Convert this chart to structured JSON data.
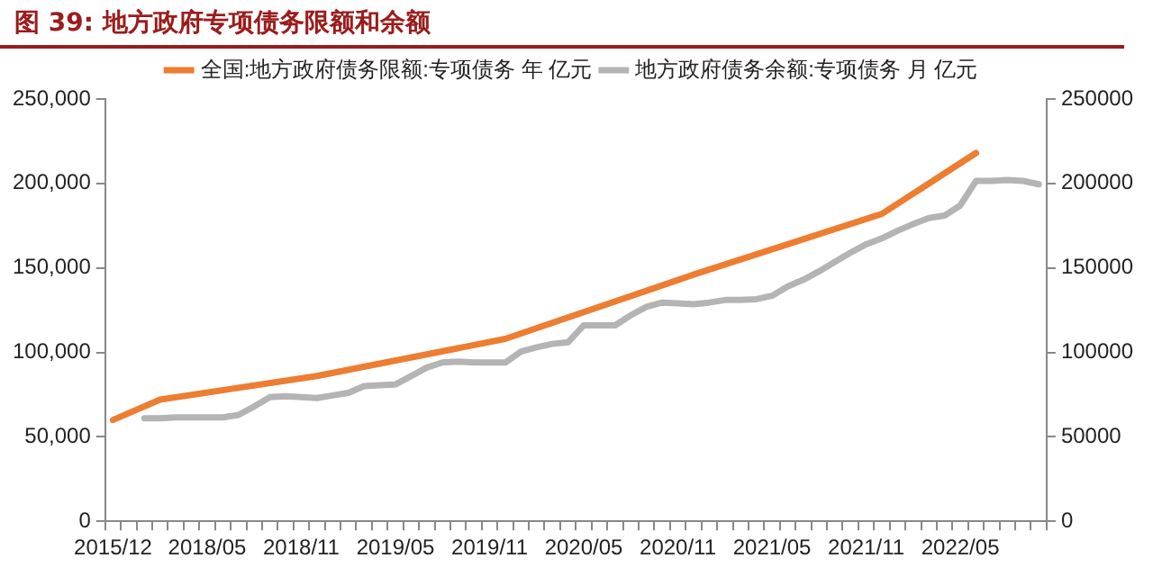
{
  "chart_data": {
    "type": "line",
    "title": "图 39: 地方政府专项债务限额和余额",
    "categories": [
      "2015/12",
      null,
      null,
      null,
      null,
      null,
      "2018/05",
      null,
      null,
      null,
      null,
      null,
      "2018/11",
      null,
      null,
      null,
      null,
      null,
      "2019/05",
      null,
      null,
      null,
      null,
      null,
      "2019/11",
      null,
      null,
      null,
      null,
      null,
      "2020/05",
      null,
      null,
      null,
      null,
      null,
      "2020/11",
      null,
      null,
      null,
      null,
      null,
      "2021/05",
      null,
      null,
      null,
      null,
      null,
      "2021/11",
      null,
      null,
      null,
      null,
      null,
      "2022/05",
      null,
      null,
      null,
      null,
      null
    ],
    "series": [
      {
        "name": "全国:地方政府债务限额:专项债务 年 亿元",
        "color": "#ed7d31",
        "values": [
          60000,
          null,
          null,
          72000,
          null,
          null,
          null,
          null,
          null,
          null,
          null,
          null,
          null,
          86000,
          null,
          null,
          null,
          null,
          null,
          null,
          null,
          null,
          null,
          null,
          null,
          108000,
          null,
          null,
          null,
          null,
          null,
          null,
          null,
          null,
          null,
          null,
          null,
          146000,
          null,
          null,
          null,
          null,
          null,
          null,
          null,
          null,
          null,
          null,
          null,
          182000,
          null,
          null,
          null,
          null,
          null,
          218000,
          null,
          null,
          null,
          null
        ]
      },
      {
        "name": "地方政府债务余额:专项债务 月 亿元",
        "color": "#b4b4b4",
        "values": [
          null,
          null,
          61000,
          61000,
          61500,
          61500,
          61500,
          61500,
          63000,
          68000,
          73500,
          74000,
          73500,
          73000,
          74500,
          76000,
          80000,
          80500,
          81000,
          86000,
          91000,
          94000,
          94500,
          94000,
          94000,
          94000,
          100500,
          103000,
          105000,
          106000,
          116000,
          116000,
          116000,
          122000,
          127000,
          129500,
          129000,
          128500,
          129500,
          131000,
          131000,
          131500,
          133500,
          139000,
          143000,
          148000,
          153500,
          159000,
          164000,
          167500,
          172000,
          176000,
          179500,
          181000,
          187000,
          201500,
          201500,
          202000,
          201500,
          199500
        ]
      }
    ],
    "ylim": [
      0,
      250000
    ],
    "yticks": [
      {
        "value": 0,
        "label": "0"
      },
      {
        "value": 50000,
        "label": "50,000"
      },
      {
        "value": 100000,
        "label": "100,000"
      },
      {
        "value": 150000,
        "label": "150,000"
      },
      {
        "value": 200000,
        "label": "200,000"
      },
      {
        "value": 250000,
        "label": "250,000"
      }
    ],
    "y2lim": [
      0,
      250000
    ],
    "y2ticks": [
      0,
      50000,
      100000,
      150000,
      200000,
      250000
    ],
    "grid": false,
    "legend": "top",
    "marker": "none",
    "line_style": "solid"
  }
}
